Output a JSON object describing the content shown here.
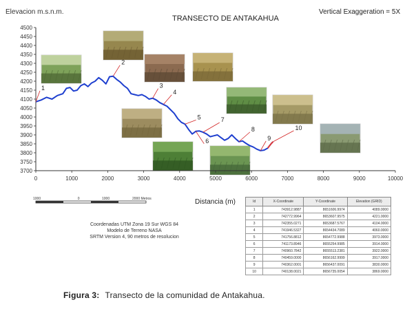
{
  "header": {
    "y_axis_title": "Elevacion m.s.n.m.",
    "chart_title": "TRANSECTO DE ANTAKAHUA",
    "vertical_exaggeration": "Vertical Exaggeration = 5X"
  },
  "x_axis": {
    "label": "Distancia (m)"
  },
  "scale_bar": {
    "labels": [
      "1000",
      "0",
      "1000",
      "2000 Metros"
    ]
  },
  "coordinate_info": {
    "lines": [
      "Coordenadas UTM Zona 19 Sur WGS 84",
      "Modelo de Terreno NASA",
      "SRTM Version 4, 90 metros de resolucion"
    ]
  },
  "table": {
    "headers": [
      "Id",
      "X-Coordinate",
      "Y-Coordinate",
      "Elevation (GRID)"
    ],
    "rows": [
      [
        "1",
        "743912.9887",
        "8651606.9974",
        "4089.0000"
      ],
      [
        "2",
        "742772.9964",
        "8653607.9575",
        "4221.0000"
      ],
      [
        "3",
        "742355.0271",
        "8653687.5767",
        "4104.0000"
      ],
      [
        "4",
        "741946.5327",
        "8654434.7089",
        "4060.0000"
      ],
      [
        "5",
        "741756.8812",
        "8654772.9988",
        "3973.0000"
      ],
      [
        "6",
        "741173.8946",
        "8655254.9985",
        "3914.0000"
      ],
      [
        "7",
        "740960.7842",
        "8655513.2381",
        "3922.0000"
      ],
      [
        "8",
        "740459.0000",
        "8656162.9999",
        "3917.0000"
      ],
      [
        "9",
        "740362.0001",
        "8656437.0091",
        "3830.0000"
      ],
      [
        "10",
        "740138.0021",
        "8656735.0054",
        "3869.0000"
      ]
    ]
  },
  "caption": {
    "label": "Figura 3:",
    "text": "Transecto de la comunidad de Antakahua."
  },
  "colors": {
    "profile_line": "#1e3fcf",
    "accent_segment": "#e03a3a",
    "leader_line": "#d22222",
    "axis": "#333333",
    "grid": "#dddddd"
  },
  "chart_data": {
    "type": "line",
    "title": "TRANSECTO DE ANTAKAHUA",
    "xlabel": "Distancia (m)",
    "ylabel": "Elevacion m.s.n.m.",
    "xlim": [
      0,
      10000
    ],
    "ylim": [
      3700,
      4500
    ],
    "x_ticks": [
      0,
      1000,
      2000,
      3000,
      4000,
      5000,
      6000,
      7000,
      8000,
      9000,
      10000
    ],
    "y_ticks": [
      3700,
      3750,
      3800,
      3850,
      3900,
      3950,
      4000,
      4050,
      4100,
      4150,
      4200,
      4250,
      4300,
      4350,
      4400,
      4450,
      4500
    ],
    "grid": false,
    "legend": "none",
    "series": [
      {
        "x": [
          0,
          150,
          300,
          450,
          600,
          750,
          850,
          950,
          1050,
          1150,
          1250,
          1350,
          1450,
          1550,
          1650,
          1750,
          1850,
          1950,
          2050,
          2150,
          2250,
          2350,
          2450,
          2550,
          2650,
          2750,
          2850,
          2950,
          3050,
          3150,
          3250,
          3350,
          3450,
          3550,
          3650,
          3750,
          3850,
          3950,
          4050,
          4150,
          4250,
          4350,
          4450,
          4550,
          4650,
          4750,
          4850,
          4950,
          5050,
          5150,
          5250,
          5350,
          5450,
          5550,
          5650,
          5750,
          5850,
          5950,
          6050,
          6150,
          6250,
          6350,
          6450,
          6550,
          6600
        ],
        "y": [
          4085,
          4095,
          4110,
          4100,
          4120,
          4130,
          4160,
          4165,
          4145,
          4150,
          4175,
          4185,
          4170,
          4190,
          4200,
          4220,
          4205,
          4185,
          4225,
          4228,
          4210,
          4195,
          4175,
          4160,
          4130,
          4125,
          4120,
          4125,
          4115,
          4100,
          4105,
          4095,
          4080,
          4070,
          4060,
          4040,
          4020,
          3990,
          3970,
          3960,
          3930,
          3905,
          3920,
          3922,
          3915,
          3905,
          3890,
          3895,
          3900,
          3885,
          3870,
          3880,
          3900,
          3880,
          3862,
          3866,
          3852,
          3840,
          3832,
          3820,
          3812,
          3815,
          3826,
          3852,
          3862
        ]
      }
    ],
    "highlight_segment": {
      "x": [
        6450,
        6550,
        6600
      ],
      "y": [
        3826,
        3852,
        3862
      ]
    },
    "annotations": [
      {
        "label": "1",
        "x": 0,
        "y": 4085
      },
      {
        "label": "2",
        "x": 2150,
        "y": 4228
      },
      {
        "label": "3",
        "x": 3250,
        "y": 4105
      },
      {
        "label": "4",
        "x": 3550,
        "y": 4070
      },
      {
        "label": "5",
        "x": 4150,
        "y": 3960
      },
      {
        "label": "6",
        "x": 4450,
        "y": 3920
      },
      {
        "label": "7",
        "x": 4650,
        "y": 3915
      },
      {
        "label": "8",
        "x": 5650,
        "y": 3862
      },
      {
        "label": "9",
        "x": 6250,
        "y": 3812
      },
      {
        "label": "10",
        "x": 6600,
        "y": 3862
      }
    ]
  }
}
